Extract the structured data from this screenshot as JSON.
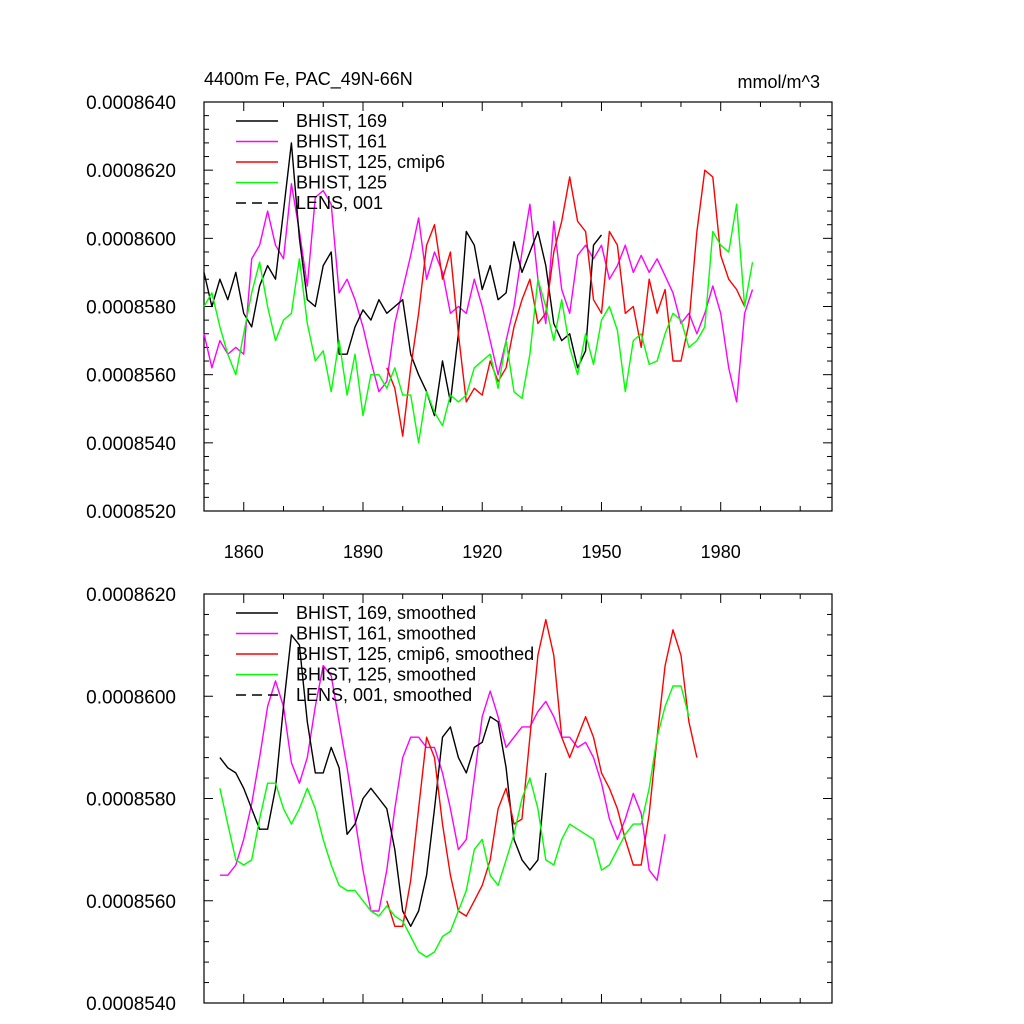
{
  "chart_data": [
    {
      "type": "line",
      "title": "4400m Fe, PAC_49N-66N",
      "units": "mmol/m^3",
      "xlim": [
        1850,
        2008
      ],
      "ylim": [
        0.000852,
        0.000864
      ],
      "xticks": [
        1860,
        1890,
        1920,
        1950,
        1980
      ],
      "ytick_labels": [
        "0.0008520",
        "0.0008540",
        "0.0008560",
        "0.0008580",
        "0.0008600",
        "0.0008620",
        "0.0008640"
      ],
      "ytick_values": [
        0.000852,
        0.000854,
        0.000856,
        0.000858,
        0.00086,
        0.000862,
        0.000864
      ],
      "grid": false,
      "legend_position": "top-left",
      "legend": [
        {
          "label": "BHIST, 169",
          "color": "#000000",
          "style": "solid"
        },
        {
          "label": "BHIST, 161",
          "color": "#ff00ff",
          "style": "solid"
        },
        {
          "label": "BHIST, 125, cmip6",
          "color": "#ff0000",
          "style": "solid"
        },
        {
          "label": "BHIST, 125",
          "color": "#00ff00",
          "style": "solid"
        },
        {
          "label": "LENS, 001",
          "color": "#000000",
          "style": "dashed"
        }
      ],
      "series": [
        {
          "name": "BHIST, 161",
          "color": "#ff00ff",
          "x_start": 1850,
          "x_step": 2,
          "values": [
            0.0008572,
            0.0008562,
            0.000857,
            0.0008566,
            0.0008568,
            0.0008566,
            0.0008594,
            0.0008598,
            0.0008608,
            0.0008598,
            0.0008594,
            0.0008616,
            0.0008602,
            0.0008586,
            0.0008612,
            0.0008614,
            0.000861,
            0.0008584,
            0.0008588,
            0.0008582,
            0.0008574,
            0.0008564,
            0.0008555,
            0.0008558,
            0.0008575,
            0.0008585,
            0.0008595,
            0.0008606,
            0.0008588,
            0.0008596,
            0.000859,
            0.0008578,
            0.000858,
            0.0008578,
            0.0008588,
            0.000858,
            0.000857,
            0.000856,
            0.000857,
            0.000858,
            0.0008596,
            0.000861,
            0.0008588,
            0.0008575,
            0.0008605,
            0.0008585,
            0.0008578,
            0.0008595,
            0.0008598,
            0.0008594,
            0.0008598,
            0.0008588,
            0.0008592,
            0.0008598,
            0.000859,
            0.0008595,
            0.000859,
            0.0008594,
            0.0008589,
            0.0008584,
            0.0008575,
            0.0008578,
            0.0008572,
            0.0008578,
            0.0008586,
            0.0008578,
            0.0008562,
            0.0008552,
            0.0008578,
            0.0008585
          ]
        },
        {
          "name": "BHIST, 169",
          "color": "#000000",
          "x_start": 1850,
          "x_step": 2,
          "values": [
            0.000859,
            0.000858,
            0.0008588,
            0.0008582,
            0.000859,
            0.0008578,
            0.0008574,
            0.0008586,
            0.0008592,
            0.0008588,
            0.0008608,
            0.0008628,
            0.00086,
            0.0008582,
            0.000858,
            0.0008592,
            0.0008596,
            0.0008566,
            0.0008566,
            0.0008574,
            0.0008579,
            0.0008576,
            0.0008582,
            0.0008578,
            0.000858,
            0.0008582,
            0.0008566,
            0.000856,
            0.0008555,
            0.0008548,
            0.0008564,
            0.0008552,
            0.0008572,
            0.0008602,
            0.0008598,
            0.0008585,
            0.0008592,
            0.0008582,
            0.0008584,
            0.0008599,
            0.000859,
            0.0008596,
            0.0008602,
            0.0008592,
            0.0008575,
            0.000857,
            0.0008572,
            0.0008562,
            0.0008567,
            0.0008598,
            0.0008601
          ]
        },
        {
          "name": "BHIST, 125, cmip6",
          "color": "#ff0000",
          "x_start": 1896,
          "x_step": 2,
          "values": [
            0.0008562,
            0.0008556,
            0.0008542,
            0.0008562,
            0.0008578,
            0.0008598,
            0.0008604,
            0.0008588,
            0.0008596,
            0.0008572,
            0.0008552,
            0.0008556,
            0.0008554,
            0.0008564,
            0.0008558,
            0.0008562,
            0.0008574,
            0.0008582,
            0.0008588,
            0.0008575,
            0.0008578,
            0.0008596,
            0.0008605,
            0.0008618,
            0.0008605,
            0.0008602,
            0.0008582,
            0.0008578,
            0.0008602,
            0.0008598,
            0.0008578,
            0.000858,
            0.0008568,
            0.0008588,
            0.0008578,
            0.0008585,
            0.0008564,
            0.0008564,
            0.0008575,
            0.0008602,
            0.000862,
            0.0008618,
            0.0008595,
            0.0008588,
            0.0008585,
            0.000858
          ]
        },
        {
          "name": "BHIST, 125",
          "color": "#00ff00",
          "x_start": 1850,
          "x_step": 2,
          "values": [
            0.000858,
            0.0008584,
            0.0008574,
            0.0008566,
            0.000856,
            0.0008572,
            0.0008584,
            0.0008593,
            0.000858,
            0.000857,
            0.0008576,
            0.0008578,
            0.0008594,
            0.0008575,
            0.0008564,
            0.0008567,
            0.0008555,
            0.000857,
            0.0008554,
            0.0008566,
            0.0008548,
            0.000856,
            0.000856,
            0.0008556,
            0.0008562,
            0.0008554,
            0.0008554,
            0.000854,
            0.0008555,
            0.0008549,
            0.0008545,
            0.0008554,
            0.0008552,
            0.0008554,
            0.0008562,
            0.0008564,
            0.0008566,
            0.0008556,
            0.000857,
            0.0008555,
            0.0008553,
            0.0008566,
            0.0008588,
            0.000858,
            0.000857,
            0.0008582,
            0.0008568,
            0.000856,
            0.0008572,
            0.0008563,
            0.0008576,
            0.000858,
            0.0008573,
            0.0008555,
            0.000857,
            0.0008572,
            0.0008563,
            0.0008564,
            0.0008572,
            0.0008578,
            0.0008576,
            0.0008568,
            0.000857,
            0.0008574,
            0.0008602,
            0.0008598,
            0.0008596,
            0.000861,
            0.000858,
            0.0008593
          ]
        }
      ]
    },
    {
      "type": "line",
      "title": "",
      "units": "",
      "xlim": [
        1850,
        2008
      ],
      "ylim": [
        0.000854,
        0.000862
      ],
      "xticks": [
        1860,
        1890,
        1920,
        1950,
        1980
      ],
      "ytick_labels": [
        "0.0008540",
        "0.0008560",
        "0.0008580",
        "0.0008600",
        "0.0008620"
      ],
      "ytick_values": [
        0.000854,
        0.000856,
        0.000858,
        0.00086,
        0.000862
      ],
      "grid": false,
      "legend_position": "top-left",
      "legend": [
        {
          "label": "BHIST, 169, smoothed",
          "color": "#000000",
          "style": "solid"
        },
        {
          "label": "BHIST, 161, smoothed",
          "color": "#ff00ff",
          "style": "solid"
        },
        {
          "label": "BHIST, 125, cmip6, smoothed",
          "color": "#ff0000",
          "style": "solid"
        },
        {
          "label": "BHIST, 125, smoothed",
          "color": "#00ff00",
          "style": "solid"
        },
        {
          "label": "LENS, 001, smoothed",
          "color": "#000000",
          "style": "dashed"
        }
      ],
      "series": [
        {
          "name": "BHIST, 161, smoothed",
          "color": "#ff00ff",
          "x_start": 1854,
          "x_step": 2,
          "values": [
            0.0008565,
            0.0008565,
            0.0008567,
            0.0008572,
            0.0008579,
            0.0008588,
            0.0008598,
            0.0008603,
            0.0008598,
            0.0008587,
            0.0008583,
            0.0008588,
            0.0008598,
            0.0008606,
            0.0008604,
            0.0008595,
            0.0008586,
            0.0008576,
            0.0008566,
            0.0008558,
            0.0008558,
            0.0008566,
            0.0008578,
            0.0008588,
            0.0008592,
            0.0008592,
            0.000859,
            0.000859,
            0.0008585,
            0.0008578,
            0.000857,
            0.0008572,
            0.0008584,
            0.0008596,
            0.0008601,
            0.0008596,
            0.000859,
            0.0008592,
            0.0008594,
            0.0008594,
            0.0008597,
            0.0008599,
            0.0008596,
            0.0008592,
            0.0008592,
            0.000859,
            0.0008591,
            0.0008588,
            0.0008583,
            0.0008576,
            0.0008572,
            0.0008576,
            0.0008581,
            0.0008577,
            0.0008566,
            0.0008564,
            0.0008573
          ]
        },
        {
          "name": "BHIST, 169, smoothed",
          "color": "#000000",
          "x_start": 1854,
          "x_step": 2,
          "values": [
            0.0008588,
            0.0008586,
            0.0008585,
            0.0008582,
            0.0008578,
            0.0008574,
            0.0008574,
            0.0008582,
            0.0008598,
            0.0008612,
            0.000861,
            0.0008595,
            0.0008585,
            0.0008585,
            0.000859,
            0.0008586,
            0.0008573,
            0.0008575,
            0.000858,
            0.0008582,
            0.000858,
            0.0008578,
            0.000857,
            0.0008558,
            0.0008555,
            0.0008558,
            0.0008565,
            0.0008578,
            0.0008592,
            0.0008594,
            0.0008588,
            0.0008585,
            0.000859,
            0.0008591,
            0.0008596,
            0.0008595,
            0.0008586,
            0.0008572,
            0.0008568,
            0.0008566,
            0.0008568,
            0.0008585
          ]
        },
        {
          "name": "BHIST, 125, cmip6, smoothed",
          "color": "#ff0000",
          "x_start": 1896,
          "x_step": 2,
          "values": [
            0.000856,
            0.0008555,
            0.0008555,
            0.0008564,
            0.0008578,
            0.0008592,
            0.0008588,
            0.0008575,
            0.0008565,
            0.0008558,
            0.0008557,
            0.000856,
            0.0008563,
            0.0008568,
            0.0008578,
            0.0008582,
            0.0008575,
            0.0008576,
            0.0008592,
            0.0008608,
            0.0008615,
            0.0008608,
            0.0008592,
            0.0008588,
            0.0008592,
            0.0008596,
            0.0008592,
            0.0008585,
            0.0008582,
            0.0008578,
            0.0008572,
            0.0008567,
            0.0008567,
            0.0008577,
            0.0008592,
            0.0008606,
            0.0008613,
            0.0008608,
            0.0008595,
            0.0008588
          ]
        },
        {
          "name": "BHIST, 125, smoothed",
          "color": "#00ff00",
          "x_start": 1854,
          "x_step": 2,
          "values": [
            0.0008582,
            0.0008575,
            0.0008568,
            0.0008567,
            0.0008568,
            0.0008576,
            0.0008583,
            0.0008583,
            0.0008578,
            0.0008575,
            0.0008578,
            0.0008582,
            0.0008578,
            0.0008572,
            0.0008567,
            0.0008563,
            0.0008562,
            0.0008562,
            0.000856,
            0.0008558,
            0.0008557,
            0.0008559,
            0.0008557,
            0.0008556,
            0.0008553,
            0.000855,
            0.0008549,
            0.000855,
            0.0008553,
            0.0008554,
            0.0008558,
            0.0008562,
            0.000857,
            0.0008572,
            0.0008565,
            0.0008563,
            0.0008568,
            0.0008573,
            0.000858,
            0.0008584,
            0.0008578,
            0.0008568,
            0.0008567,
            0.0008572,
            0.0008575,
            0.0008574,
            0.0008573,
            0.0008572,
            0.0008566,
            0.0008567,
            0.000857,
            0.0008573,
            0.0008575,
            0.0008575,
            0.0008582,
            0.0008592,
            0.0008598,
            0.0008602,
            0.0008602,
            0.0008596
          ]
        }
      ]
    }
  ]
}
